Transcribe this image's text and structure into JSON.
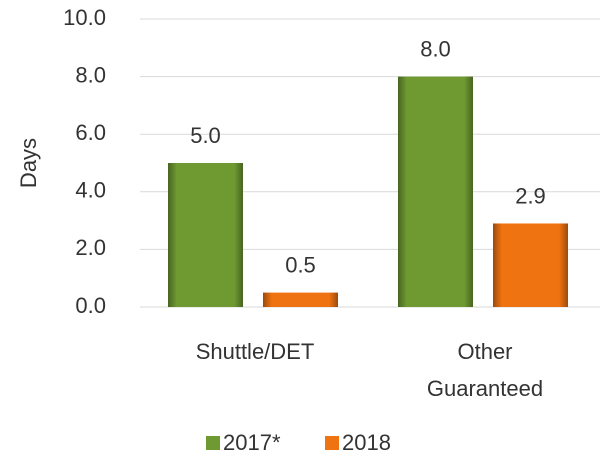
{
  "chart_data": {
    "type": "bar",
    "y_label": "Days",
    "categories": [
      "Shuttle/DET",
      "Other Guaranteed"
    ],
    "series": [
      {
        "name": "2017*",
        "color": "#6f9a32",
        "values": [
          5,
          8
        ],
        "value_labels": [
          "5.0",
          "8.0"
        ]
      },
      {
        "name": "2018",
        "color": "#f07311",
        "values": [
          0.5,
          2.9
        ],
        "value_labels": [
          "0.5",
          "2.9"
        ]
      }
    ],
    "ylim": [
      0,
      10
    ],
    "yticks": [
      {
        "value": 0,
        "label": "0.0"
      },
      {
        "value": 2,
        "label": "2.0"
      },
      {
        "value": 4,
        "label": "4.0"
      },
      {
        "value": 6,
        "label": "6.0"
      },
      {
        "value": 8,
        "label": "8.0"
      },
      {
        "value": 10,
        "label": "10.0"
      }
    ],
    "grid": true,
    "legend": "bottom"
  }
}
